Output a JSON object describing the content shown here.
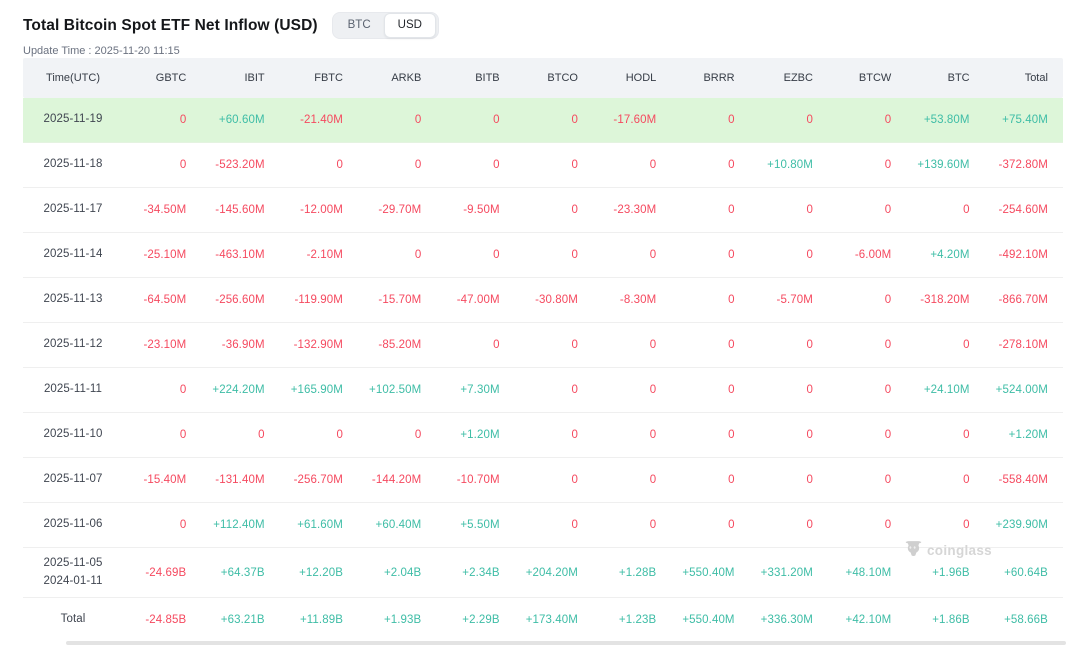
{
  "header": {
    "title": "Total Bitcoin Spot ETF Net Inflow (USD)",
    "update_time": "Update Time : 2025-11-20 11:15",
    "toggle": {
      "options": [
        "BTC",
        "USD"
      ],
      "selected": "USD"
    }
  },
  "watermark": "coinglass",
  "colors": {
    "positive": "#3ebda6",
    "negative": "#f5495f",
    "row_highlight": "#ddf6d9",
    "header_bg": "#f1f3f6"
  },
  "table": {
    "columns": [
      "Time(UTC)",
      "GBTC",
      "IBIT",
      "FBTC",
      "ARKB",
      "BITB",
      "BTCO",
      "HODL",
      "BRRR",
      "EZBC",
      "BTCW",
      "BTC",
      "Total"
    ],
    "rows": [
      {
        "time": [
          "2025-11-19"
        ],
        "highlight": true,
        "values": [
          "0",
          "+60.60M",
          "-21.40M",
          "0",
          "0",
          "0",
          "-17.60M",
          "0",
          "0",
          "0",
          "+53.80M",
          "+75.40M"
        ]
      },
      {
        "time": [
          "2025-11-18"
        ],
        "values": [
          "0",
          "-523.20M",
          "0",
          "0",
          "0",
          "0",
          "0",
          "0",
          "+10.80M",
          "0",
          "+139.60M",
          "-372.80M"
        ]
      },
      {
        "time": [
          "2025-11-17"
        ],
        "values": [
          "-34.50M",
          "-145.60M",
          "-12.00M",
          "-29.70M",
          "-9.50M",
          "0",
          "-23.30M",
          "0",
          "0",
          "0",
          "0",
          "-254.60M"
        ]
      },
      {
        "time": [
          "2025-11-14"
        ],
        "values": [
          "-25.10M",
          "-463.10M",
          "-2.10M",
          "0",
          "0",
          "0",
          "0",
          "0",
          "0",
          "-6.00M",
          "+4.20M",
          "-492.10M"
        ]
      },
      {
        "time": [
          "2025-11-13"
        ],
        "values": [
          "-64.50M",
          "-256.60M",
          "-119.90M",
          "-15.70M",
          "-47.00M",
          "-30.80M",
          "-8.30M",
          "0",
          "-5.70M",
          "0",
          "-318.20M",
          "-866.70M"
        ]
      },
      {
        "time": [
          "2025-11-12"
        ],
        "values": [
          "-23.10M",
          "-36.90M",
          "-132.90M",
          "-85.20M",
          "0",
          "0",
          "0",
          "0",
          "0",
          "0",
          "0",
          "-278.10M"
        ]
      },
      {
        "time": [
          "2025-11-11"
        ],
        "values": [
          "0",
          "+224.20M",
          "+165.90M",
          "+102.50M",
          "+7.30M",
          "0",
          "0",
          "0",
          "0",
          "0",
          "+24.10M",
          "+524.00M"
        ]
      },
      {
        "time": [
          "2025-11-10"
        ],
        "values": [
          "0",
          "0",
          "0",
          "0",
          "+1.20M",
          "0",
          "0",
          "0",
          "0",
          "0",
          "0",
          "+1.20M"
        ]
      },
      {
        "time": [
          "2025-11-07"
        ],
        "values": [
          "-15.40M",
          "-131.40M",
          "-256.70M",
          "-144.20M",
          "-10.70M",
          "0",
          "0",
          "0",
          "0",
          "0",
          "0",
          "-558.40M"
        ]
      },
      {
        "time": [
          "2025-11-06"
        ],
        "values": [
          "0",
          "+112.40M",
          "+61.60M",
          "+60.40M",
          "+5.50M",
          "0",
          "0",
          "0",
          "0",
          "0",
          "0",
          "+239.90M"
        ]
      },
      {
        "time": [
          "2025-11-05",
          "2024-01-11"
        ],
        "range": true,
        "values": [
          "-24.69B",
          "+64.37B",
          "+12.20B",
          "+2.04B",
          "+2.34B",
          "+204.20M",
          "+1.28B",
          "+550.40M",
          "+331.20M",
          "+48.10M",
          "+1.96B",
          "+60.64B"
        ]
      },
      {
        "time": [
          "Total"
        ],
        "total": true,
        "values": [
          "-24.85B",
          "+63.21B",
          "+11.89B",
          "+1.93B",
          "+2.29B",
          "+173.40M",
          "+1.23B",
          "+550.40M",
          "+336.30M",
          "+42.10M",
          "+1.86B",
          "+58.66B"
        ]
      }
    ]
  }
}
